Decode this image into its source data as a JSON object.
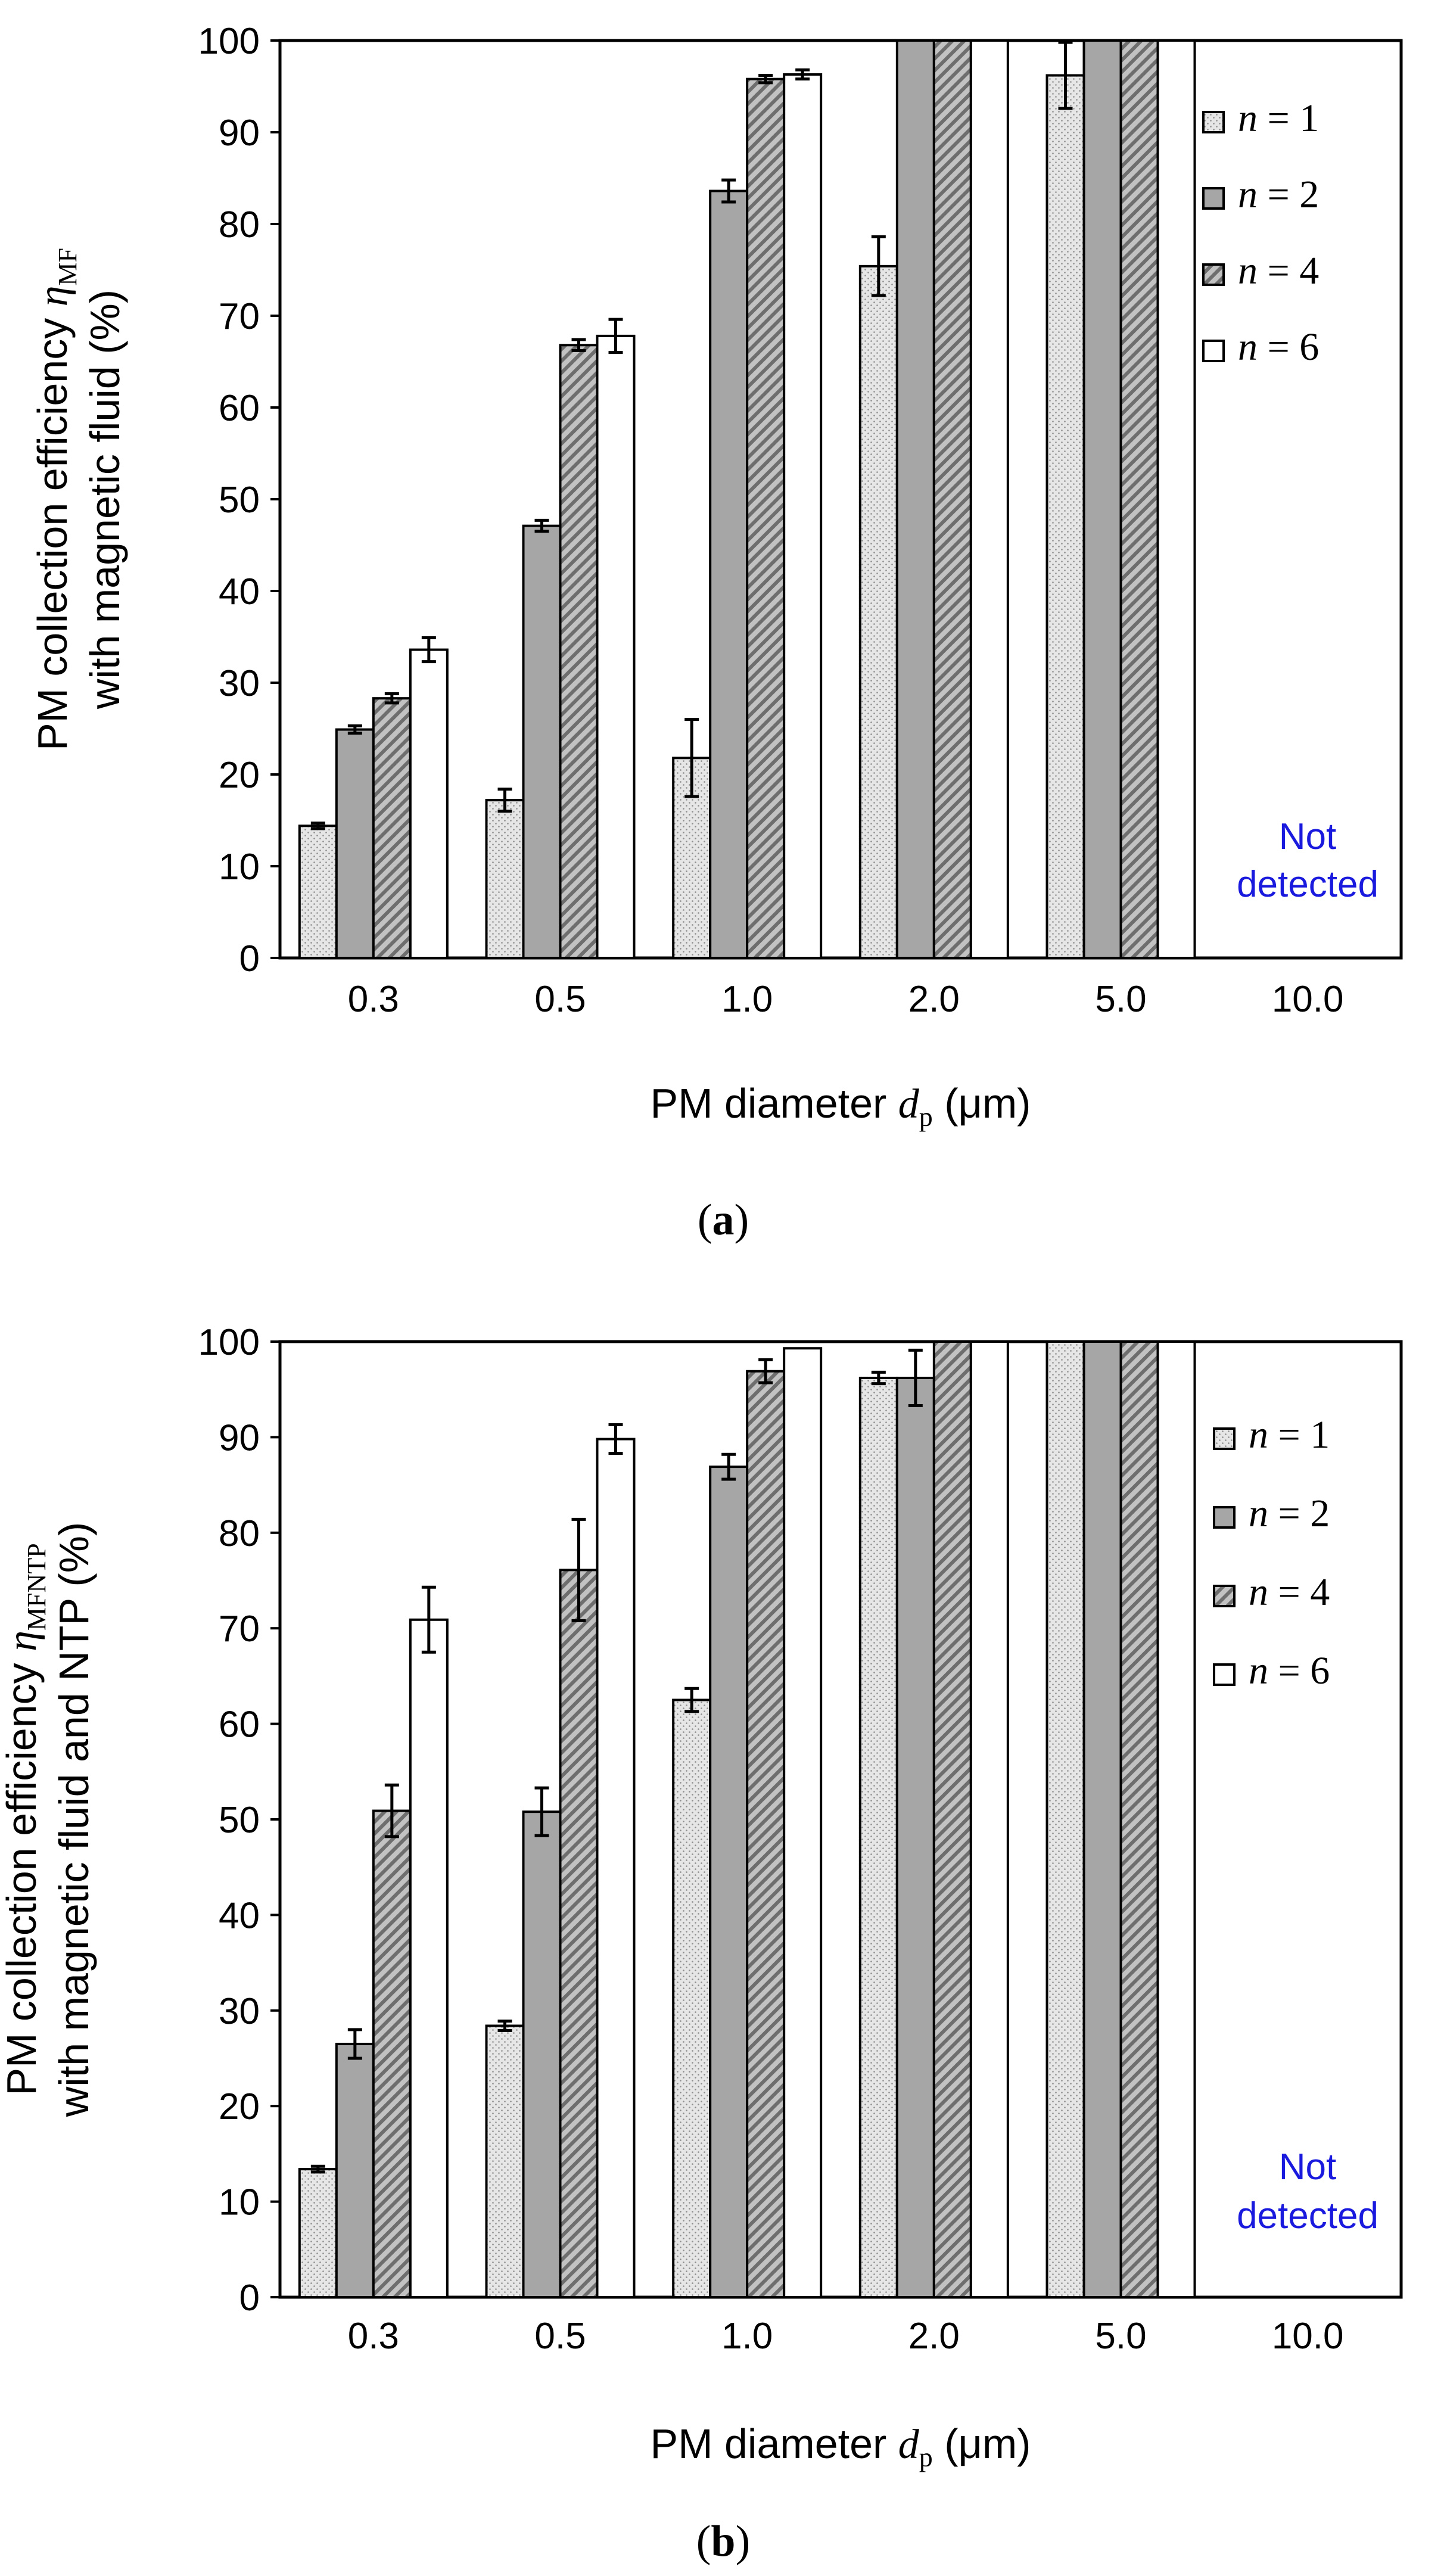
{
  "chart_data": [
    {
      "type": "bar",
      "panel_label": "(a)",
      "panel_letter": "a",
      "categories": [
        "0.3",
        "0.5",
        "1.0",
        "2.0",
        "5.0",
        "10.0"
      ],
      "series": [
        {
          "name": "n = 1",
          "n": "1",
          "values": [
            14.4,
            17.2,
            21.8,
            75.4,
            96.2,
            null
          ],
          "errors": [
            0.3,
            1.2,
            4.2,
            3.2,
            3.6,
            null
          ]
        },
        {
          "name": "n = 2",
          "n": "2",
          "values": [
            24.9,
            47.1,
            83.6,
            100,
            100,
            null
          ],
          "errors": [
            0.4,
            0.6,
            1.2,
            0,
            0,
            null
          ]
        },
        {
          "name": "n = 4",
          "n": "4",
          "values": [
            28.3,
            66.8,
            95.8,
            100,
            100,
            null
          ],
          "errors": [
            0.5,
            0.6,
            0.4,
            0,
            0,
            null
          ]
        },
        {
          "name": "n = 6",
          "n": "6",
          "values": [
            33.6,
            67.8,
            96.3,
            100,
            100,
            null
          ],
          "errors": [
            1.3,
            1.8,
            0.5,
            0,
            0,
            null
          ]
        }
      ],
      "ylim": [
        0,
        100
      ],
      "yticks": [
        "0",
        "10",
        "20",
        "30",
        "40",
        "50",
        "60",
        "70",
        "80",
        "90",
        "100"
      ],
      "ylabel_line1": "PM collection efficiency ",
      "ylabel_symbol": "η",
      "ylabel_subscript": "MF",
      "ylabel_line2": "with magnetic fluid (%)",
      "xlabel_prefix": "PM diameter ",
      "xlabel_symbol": "d",
      "xlabel_subscript": "p",
      "xlabel_suffix": " (μm)",
      "annotation_line1": "Not",
      "annotation_line2": "detected",
      "legend_position": "top-right"
    },
    {
      "type": "bar",
      "panel_label": "(b)",
      "panel_letter": "b",
      "categories": [
        "0.3",
        "0.5",
        "1.0",
        "2.0",
        "5.0",
        "10.0"
      ],
      "series": [
        {
          "name": "n = 1",
          "n": "1",
          "values": [
            13.4,
            28.4,
            62.5,
            96.2,
            100,
            null
          ],
          "errors": [
            0.3,
            0.5,
            1.2,
            0.6,
            0,
            null
          ]
        },
        {
          "name": "n = 2",
          "n": "2",
          "values": [
            26.5,
            50.8,
            86.9,
            96.2,
            100,
            null
          ],
          "errors": [
            1.5,
            2.5,
            1.3,
            2.9,
            0,
            null
          ]
        },
        {
          "name": "n = 4",
          "n": "4",
          "values": [
            50.9,
            76.1,
            96.9,
            100,
            100,
            null
          ],
          "errors": [
            2.7,
            5.3,
            1.2,
            0,
            0,
            null
          ]
        },
        {
          "name": "n = 6",
          "n": "6",
          "values": [
            70.9,
            89.8,
            99.3,
            100,
            100,
            null
          ],
          "errors": [
            3.4,
            1.5,
            0,
            0,
            0,
            null
          ]
        }
      ],
      "ylim": [
        0,
        100
      ],
      "yticks": [
        "0",
        "10",
        "20",
        "30",
        "40",
        "50",
        "60",
        "70",
        "80",
        "90",
        "100"
      ],
      "ylabel_line1": "PM collection efficiency ",
      "ylabel_symbol": "η",
      "ylabel_subscript": "MFNTP",
      "ylabel_line2": "with magnetic fluid and NTP (%)",
      "xlabel_prefix": "PM diameter ",
      "xlabel_symbol": "d",
      "xlabel_subscript": "p",
      "xlabel_suffix": " (μm)",
      "annotation_line1": "Not",
      "annotation_line2": "detected",
      "legend_position": "top-right"
    }
  ],
  "legend_prefix": "n",
  "legend_equals": " = ",
  "colors": {
    "n1_fill": "#e4e4e4",
    "n2_fill": "#a6a6a6",
    "n4_fill": "#9a9a9a",
    "n6_fill": "#ffffff",
    "outline": "#000000",
    "note": "#1a1adf"
  }
}
